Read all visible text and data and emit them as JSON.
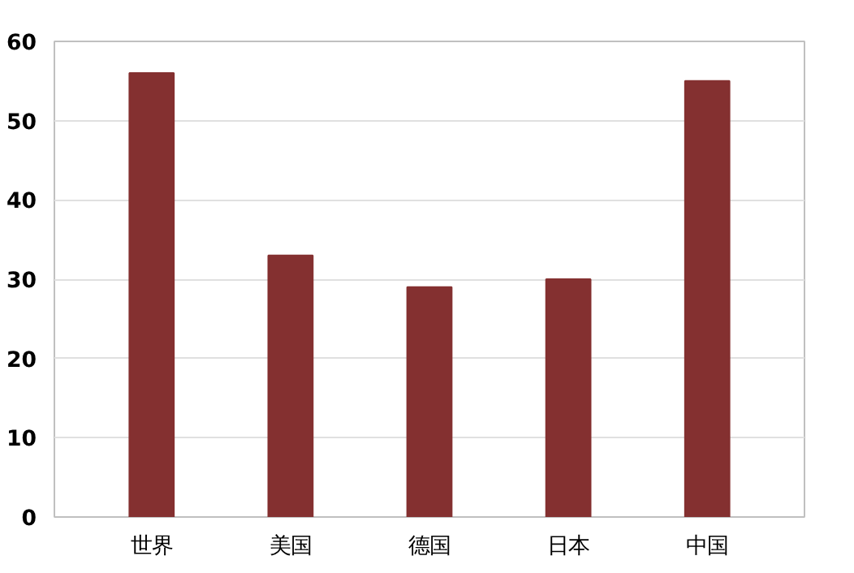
{
  "chart_data": {
    "type": "bar",
    "categories": [
      "世界",
      "美国",
      "德国",
      "日本",
      "中国"
    ],
    "values": [
      56,
      33,
      29,
      30,
      55
    ],
    "color": "#843030",
    "ylim": [
      0,
      60
    ],
    "yticks": [
      0,
      10,
      20,
      30,
      40,
      50,
      60
    ],
    "grid": "y"
  }
}
